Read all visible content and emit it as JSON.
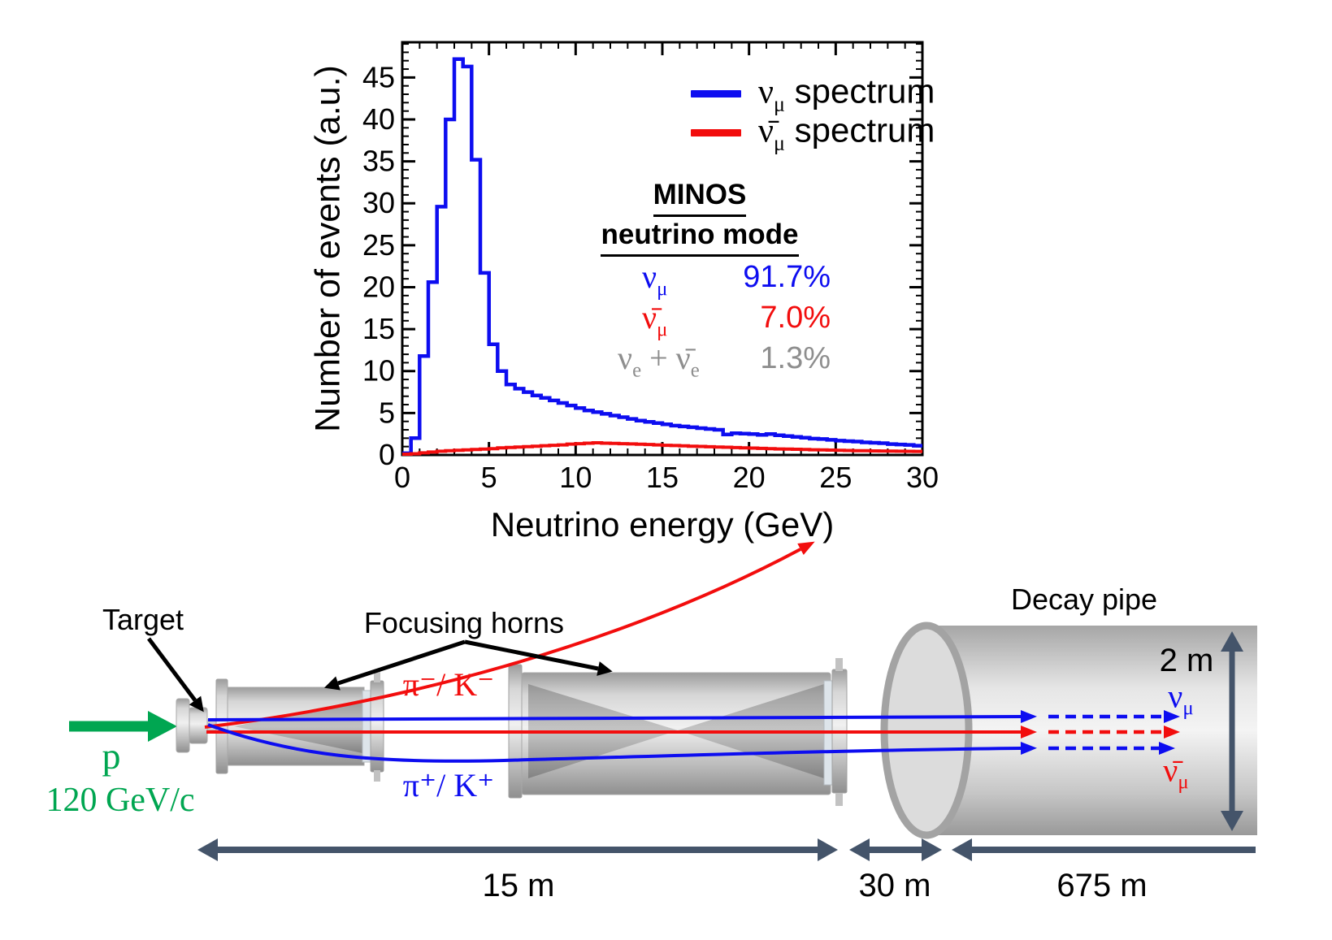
{
  "chart_data": {
    "type": "line",
    "subtype": "step-histogram",
    "title": "",
    "xlabel": "Neutrino energy (GeV)",
    "ylabel": "Number of events (a.u.)",
    "xlim": [
      0,
      30
    ],
    "ylim": [
      0,
      49.2
    ],
    "x_ticks": [
      0,
      5,
      10,
      15,
      20,
      25,
      30
    ],
    "y_ticks": [
      0,
      5,
      10,
      15,
      20,
      25,
      30,
      35,
      40,
      45
    ],
    "minor_tick_step_x": 1,
    "minor_tick_step_y": 1,
    "grid": false,
    "legend_position": "top-right",
    "bin_width_gev": 0.5,
    "series": [
      {
        "name": "νμ spectrum",
        "color": "#0d0df0",
        "values": [
          0.2,
          2.0,
          11.8,
          20.6,
          29.6,
          40.0,
          47.2,
          46.3,
          35.2,
          21.7,
          13.2,
          10.0,
          8.4,
          7.9,
          7.5,
          7.1,
          6.8,
          6.5,
          6.2,
          5.9,
          5.6,
          5.3,
          5.1,
          4.9,
          4.7,
          4.5,
          4.3,
          4.1,
          3.95,
          3.8,
          3.65,
          3.5,
          3.4,
          3.3,
          3.2,
          3.1,
          3.0,
          2.45,
          2.6,
          2.55,
          2.5,
          2.4,
          2.5,
          2.35,
          2.25,
          2.15,
          2.05,
          1.95,
          1.9,
          1.8,
          1.7,
          1.65,
          1.6,
          1.5,
          1.45,
          1.4,
          1.3,
          1.25,
          1.2,
          1.1
        ]
      },
      {
        "name": "ν̄μ spectrum",
        "color": "#f20d0d",
        "values": [
          0.1,
          0.15,
          0.25,
          0.35,
          0.45,
          0.5,
          0.55,
          0.6,
          0.65,
          0.7,
          0.75,
          0.85,
          0.9,
          0.95,
          1.0,
          1.05,
          1.1,
          1.15,
          1.2,
          1.3,
          1.35,
          1.4,
          1.45,
          1.4,
          1.38,
          1.35,
          1.32,
          1.28,
          1.25,
          1.2,
          1.15,
          1.12,
          1.08,
          1.05,
          1.02,
          0.98,
          0.95,
          0.92,
          0.88,
          0.85,
          0.82,
          0.78,
          0.75,
          0.72,
          0.7,
          0.68,
          0.65,
          0.62,
          0.6,
          0.58,
          0.55,
          0.53,
          0.5,
          0.5,
          0.48,
          0.47,
          0.46,
          0.45,
          0.44,
          0.43
        ]
      }
    ]
  },
  "chart": {
    "ylabel": "Number of events (a.u.)",
    "xlabel": "Neutrino energy (GeV)",
    "legend": [
      {
        "symbol": "ν",
        "sub": "μ",
        "rest": " spectrum"
      },
      {
        "symbol": "ν̄",
        "sub": "μ",
        "rest": " spectrum"
      }
    ],
    "stats": {
      "title1": "MINOS",
      "title2": "neutrino mode",
      "rows": [
        {
          "sym": "ν",
          "sub": "μ",
          "value": "91.7%"
        },
        {
          "sym": "ν̄",
          "sub": "μ",
          "value": "7.0%"
        },
        {
          "sym1": "ν",
          "sub1": "e",
          "plus": " + ",
          "sym2": "ν̄",
          "sub2": "e",
          "value": "1.3%"
        }
      ]
    }
  },
  "beamline": {
    "target_label": "Target",
    "horns_label": "Focusing horns",
    "decay_pipe_label": "Decay pipe",
    "proton_symbol": "p",
    "proton_momentum": "120 GeV/c",
    "negative_mesons": "π⁻/ K⁻",
    "positive_mesons": "π⁺/ K⁺",
    "numu": {
      "sym": "ν",
      "sub": "μ"
    },
    "numubar": {
      "sym": "ν̄",
      "sub": "μ"
    },
    "dims": {
      "horns": "15 m",
      "gap": "30 m",
      "pipe": "675 m",
      "diameter": "2 m"
    }
  },
  "colors": {
    "blue": "#0d0df0",
    "red": "#f20d0d",
    "gray": "#8e8e8e",
    "green": "#00a651",
    "slate": "#44546a",
    "black": "#000000"
  }
}
